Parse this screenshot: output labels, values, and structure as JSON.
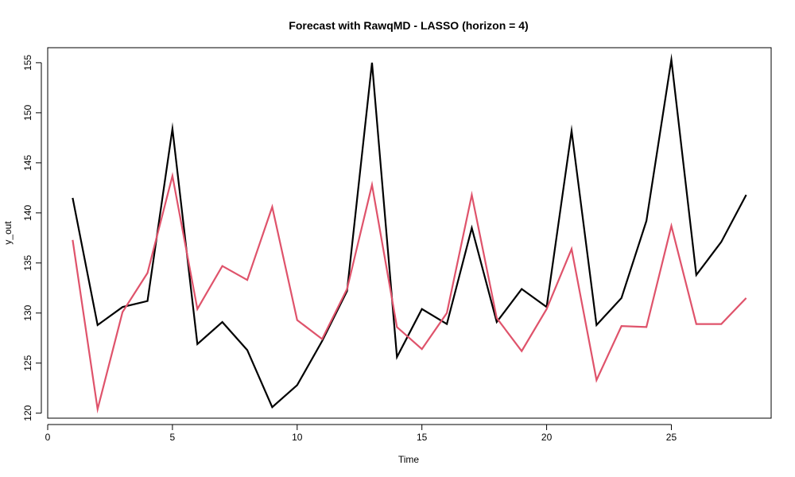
{
  "chart_data": {
    "type": "line",
    "title": "Forecast with RawqMD - LASSO (horizon = 4)",
    "xlabel": "Time",
    "ylabel": "y_out",
    "xlim": [
      0,
      29
    ],
    "ylim": [
      119.5,
      156.5
    ],
    "x_ticks": [
      0,
      5,
      10,
      15,
      20,
      25
    ],
    "y_ticks": [
      120,
      125,
      130,
      135,
      140,
      145,
      150,
      155
    ],
    "grid": false,
    "legend": "none",
    "x": [
      1,
      2,
      3,
      4,
      5,
      6,
      7,
      8,
      9,
      10,
      11,
      12,
      13,
      14,
      15,
      16,
      17,
      18,
      19,
      20,
      21,
      22,
      23,
      24,
      25,
      26,
      27,
      28
    ],
    "series": [
      {
        "color": "#000000",
        "values": [
          141.5,
          128.8,
          130.6,
          131.2,
          148.4,
          126.9,
          129.1,
          126.3,
          120.6,
          122.8,
          127.2,
          132.2,
          155.0,
          125.6,
          130.4,
          128.9,
          138.5,
          129.1,
          132.4,
          130.6,
          148.2,
          128.8,
          131.5,
          139.2,
          155.3,
          133.8,
          137.1,
          141.8
        ]
      },
      {
        "color": "#DF536B",
        "values": [
          137.3,
          120.4,
          130.1,
          134.0,
          143.7,
          130.4,
          134.7,
          133.3,
          140.6,
          129.3,
          127.4,
          132.4,
          142.8,
          128.6,
          126.4,
          130.0,
          141.8,
          129.5,
          126.2,
          130.4,
          136.4,
          123.3,
          128.7,
          128.6,
          138.7,
          128.9,
          128.9,
          131.5
        ]
      }
    ]
  }
}
